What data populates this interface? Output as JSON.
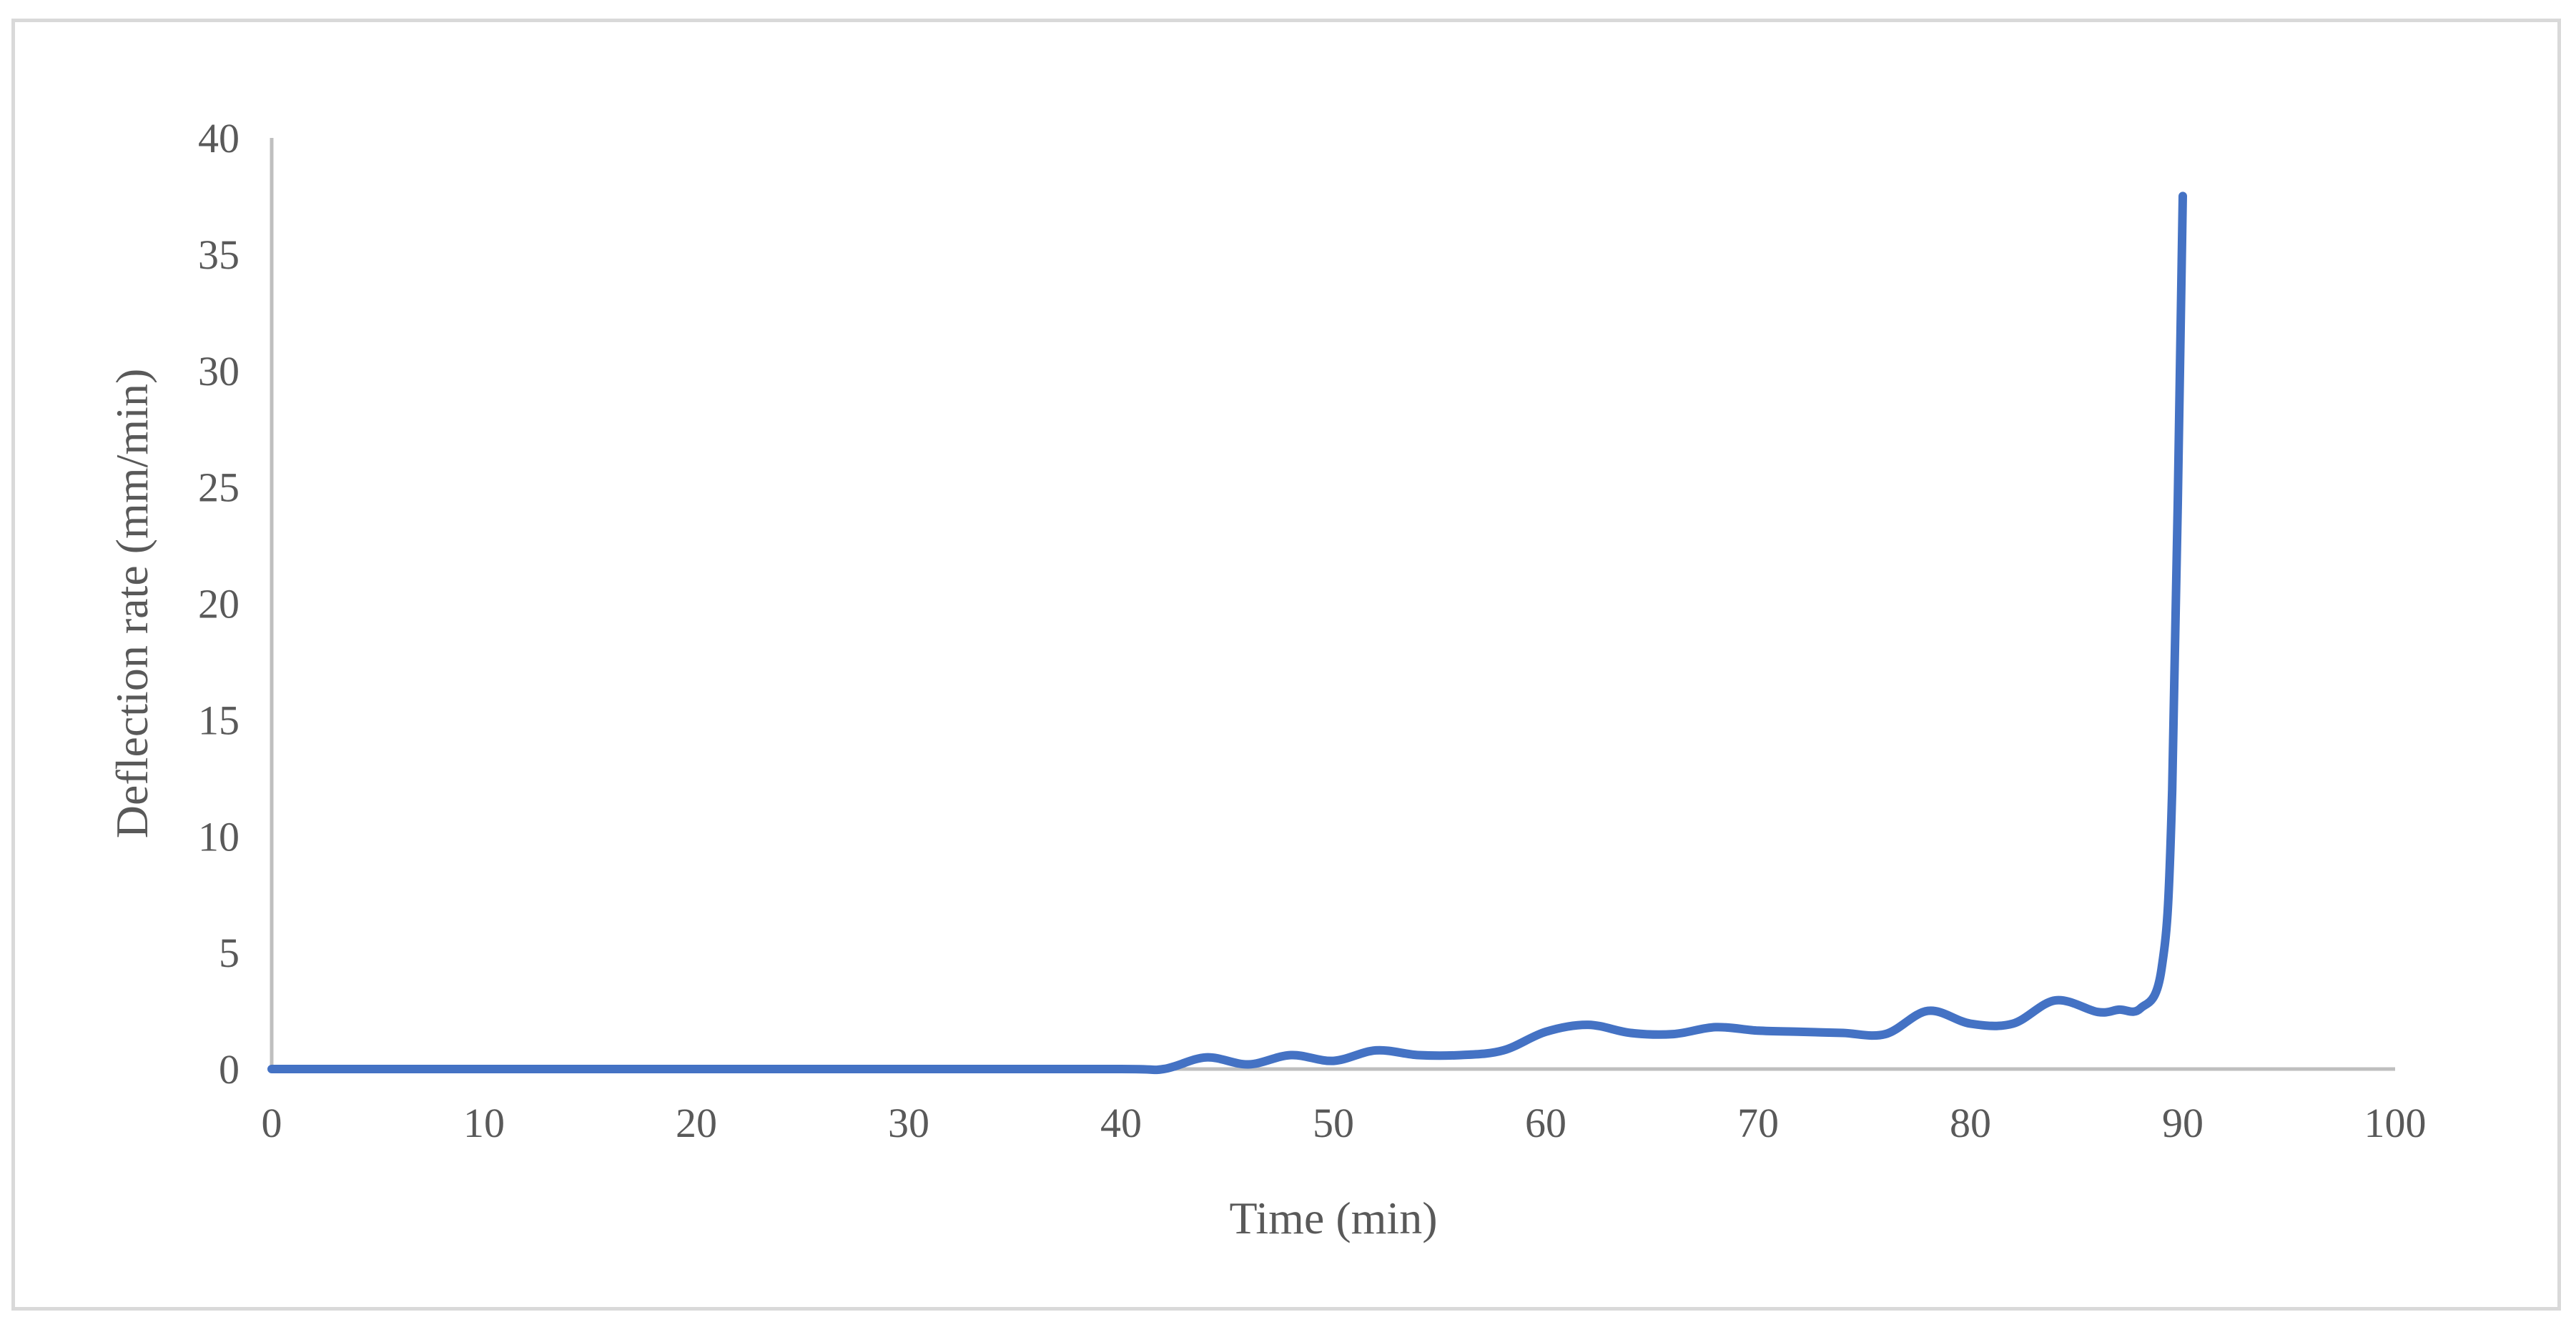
{
  "chart_data": {
    "type": "line",
    "xlabel": "Time (min)",
    "ylabel": "Deflection rate (mm/min)",
    "xlim": [
      0,
      100
    ],
    "ylim": [
      0,
      40
    ],
    "xticks": [
      0,
      10,
      20,
      30,
      40,
      50,
      60,
      70,
      80,
      90,
      100
    ],
    "yticks": [
      0,
      5,
      10,
      15,
      20,
      25,
      30,
      35,
      40
    ],
    "grid": false,
    "legend": "none",
    "series": [
      {
        "color": "#4472c4",
        "x": [
          0,
          10,
          20,
          30,
          40,
          42,
          44,
          46,
          48,
          50,
          52,
          54,
          56,
          58,
          60,
          62,
          64,
          66,
          68,
          70,
          72,
          74,
          76,
          78,
          80,
          82,
          84,
          86,
          87,
          88,
          89,
          89.5,
          90
        ],
        "y": [
          0,
          0,
          0,
          0,
          0,
          0,
          0.5,
          0.2,
          0.6,
          0.35,
          0.8,
          0.6,
          0.6,
          0.8,
          1.6,
          1.9,
          1.55,
          1.5,
          1.8,
          1.65,
          1.6,
          1.55,
          1.5,
          2.5,
          1.95,
          1.95,
          2.95,
          2.45,
          2.55,
          2.6,
          4.3,
          12,
          37.5
        ]
      }
    ]
  }
}
